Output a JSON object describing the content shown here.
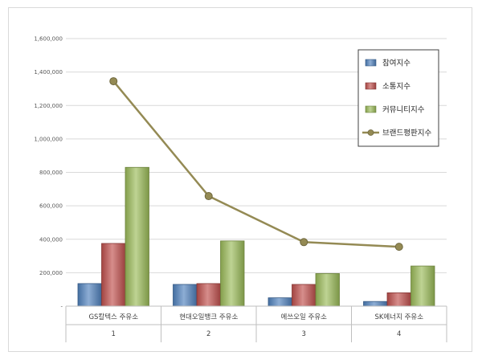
{
  "chart_data": {
    "type": "bar",
    "title": "",
    "xlabel": "",
    "ylabel": "",
    "categories": [
      "GS칼텍스 주유소",
      "현대오일뱅크 주유소",
      "에쓰오일 주유소",
      "SK에너지 주유소"
    ],
    "category_index": [
      "1",
      "2",
      "3",
      "4"
    ],
    "ylim": [
      0,
      1600000
    ],
    "yticks": [
      0,
      200000,
      400000,
      600000,
      800000,
      1000000,
      1200000,
      1400000,
      1600000
    ],
    "ytick_labels": [
      "-",
      "200,000",
      "400,000",
      "600,000",
      "800,000",
      "1,000,000",
      "1,200,000",
      "1,400,000",
      "1,600,000"
    ],
    "grid": true,
    "legend_position": "top-right",
    "series": [
      {
        "name": "참여지수",
        "kind": "bar",
        "color": "#4f81bd",
        "values": [
          135000,
          130000,
          50000,
          28000
        ]
      },
      {
        "name": "소통지수",
        "kind": "bar",
        "color": "#c0504d",
        "values": [
          375000,
          135000,
          130000,
          80000
        ]
      },
      {
        "name": "커뮤니티지수",
        "kind": "bar",
        "color": "#9bbb59",
        "values": [
          830000,
          390000,
          195000,
          240000
        ]
      },
      {
        "name": "브랜드평판지수",
        "kind": "line",
        "color": "#948a54",
        "values": [
          1345000,
          658000,
          383000,
          355000
        ]
      }
    ]
  }
}
